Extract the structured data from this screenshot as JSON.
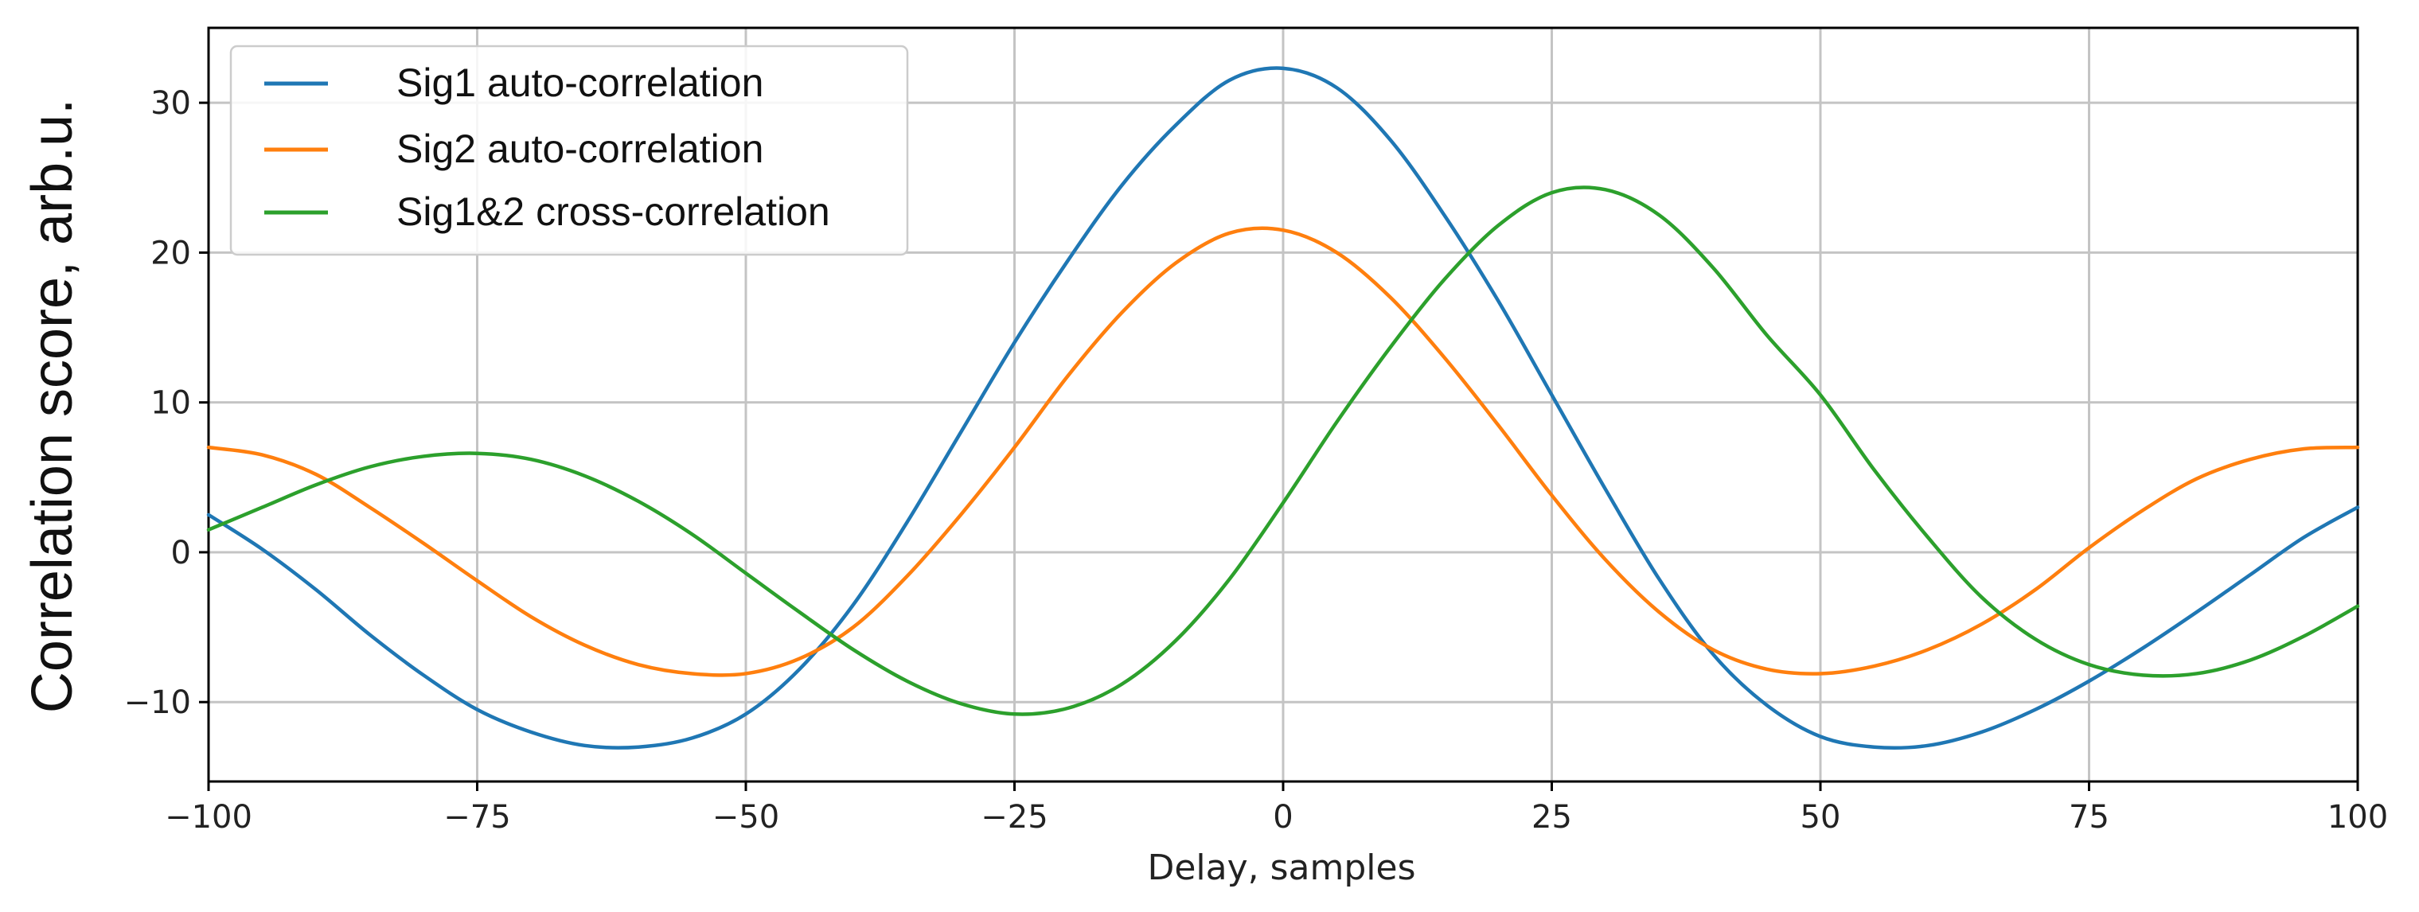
{
  "chart_data": {
    "type": "line",
    "title": "",
    "xlabel": "Delay, samples",
    "ylabel": "Correlation score, arb.u.",
    "xlim": [
      -100,
      100
    ],
    "ylim": [
      -15.3,
      35
    ],
    "grid": true,
    "legend_position": "top-left",
    "xticks": [
      -100,
      -75,
      -50,
      -25,
      0,
      25,
      50,
      75,
      100
    ],
    "xtick_labels": [
      "−100",
      "−75",
      "−50",
      "−25",
      "0",
      "25",
      "50",
      "75",
      "100"
    ],
    "yticks": [
      -10,
      0,
      10,
      20,
      30
    ],
    "ytick_labels": [
      "−10",
      "0",
      "10",
      "20",
      "30"
    ],
    "series": [
      {
        "name": "Sig1 auto-correlation",
        "color": "#1f77b4",
        "x": [
          -100,
          -95,
          -90,
          -85,
          -80,
          -75,
          -70,
          -65,
          -60,
          -55,
          -50,
          -45,
          -40,
          -35,
          -30,
          -25,
          -20,
          -15,
          -10,
          -5,
          0,
          5,
          10,
          15,
          20,
          25,
          30,
          35,
          40,
          45,
          50,
          55,
          60,
          65,
          70,
          75,
          80,
          85,
          90,
          95,
          100
        ],
        "y": [
          2.5,
          0.2,
          -2.5,
          -5.5,
          -8.2,
          -10.5,
          -12.0,
          -12.9,
          -13.0,
          -12.4,
          -10.8,
          -7.8,
          -3.5,
          2.0,
          8.0,
          14.0,
          19.5,
          24.5,
          28.5,
          31.5,
          32.3,
          31.0,
          27.5,
          22.5,
          16.8,
          10.5,
          4.2,
          -1.8,
          -6.8,
          -10.2,
          -12.3,
          -13.0,
          -12.9,
          -12.0,
          -10.5,
          -8.6,
          -6.4,
          -4.0,
          -1.5,
          1.0,
          3.0
        ]
      },
      {
        "name": "Sig2 auto-correlation",
        "color": "#ff7f0e",
        "x": [
          -100,
          -95,
          -90,
          -85,
          -80,
          -75,
          -70,
          -65,
          -60,
          -55,
          -50,
          -45,
          -40,
          -35,
          -30,
          -25,
          -20,
          -15,
          -10,
          -5,
          0,
          5,
          10,
          15,
          20,
          25,
          30,
          35,
          40,
          45,
          50,
          55,
          60,
          65,
          70,
          75,
          80,
          85,
          90,
          95,
          100
        ],
        "y": [
          7.0,
          6.5,
          5.2,
          3.0,
          0.6,
          -1.9,
          -4.3,
          -6.2,
          -7.5,
          -8.1,
          -8.1,
          -7.1,
          -5.0,
          -1.6,
          2.5,
          7.0,
          11.8,
          16.0,
          19.3,
          21.3,
          21.5,
          20.0,
          17.0,
          13.0,
          8.5,
          3.8,
          -0.5,
          -4.0,
          -6.5,
          -7.8,
          -8.1,
          -7.6,
          -6.5,
          -4.8,
          -2.5,
          0.3,
          2.8,
          4.9,
          6.2,
          6.9,
          7.0
        ]
      },
      {
        "name": "Sig1&2 cross-correlation",
        "color": "#2ca02c",
        "x": [
          -100,
          -95,
          -90,
          -85,
          -80,
          -75,
          -70,
          -65,
          -60,
          -55,
          -50,
          -45,
          -40,
          -35,
          -30,
          -25,
          -20,
          -15,
          -10,
          -5,
          0,
          5,
          10,
          15,
          20,
          25,
          30,
          35,
          40,
          45,
          50,
          55,
          60,
          65,
          70,
          75,
          80,
          85,
          90,
          95,
          100
        ],
        "y": [
          1.5,
          3.0,
          4.5,
          5.7,
          6.4,
          6.6,
          6.2,
          5.1,
          3.4,
          1.2,
          -1.4,
          -4.0,
          -6.5,
          -8.6,
          -10.1,
          -10.8,
          -10.4,
          -8.8,
          -5.9,
          -1.8,
          3.3,
          8.7,
          13.7,
          18.2,
          21.8,
          24.0,
          24.2,
          22.5,
          19.0,
          14.5,
          10.5,
          5.5,
          1.0,
          -3.0,
          -5.8,
          -7.5,
          -8.2,
          -8.1,
          -7.2,
          -5.6,
          -3.6
        ]
      }
    ]
  }
}
